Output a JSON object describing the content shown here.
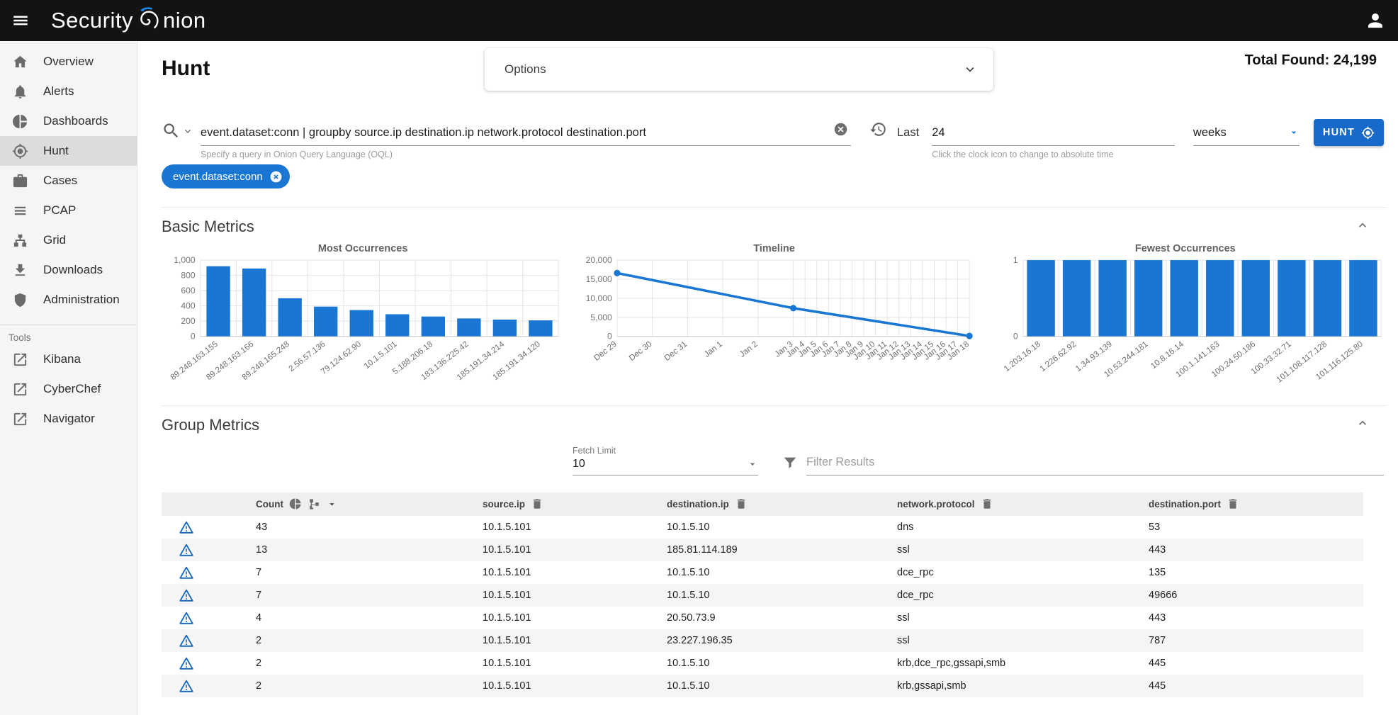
{
  "topbar": {
    "logo_prefix": "Security",
    "logo_suffix": "nion",
    "menu_icon": "hamburger-icon",
    "user_icon": "person-icon"
  },
  "sidebar": {
    "items": [
      {
        "label": "Overview",
        "icon": "home-icon",
        "active": false
      },
      {
        "label": "Alerts",
        "icon": "bell-icon",
        "active": false
      },
      {
        "label": "Dashboards",
        "icon": "pie-chart-icon",
        "active": false
      },
      {
        "label": "Hunt",
        "icon": "crosshair-icon",
        "active": true
      },
      {
        "label": "Cases",
        "icon": "briefcase-icon",
        "active": false
      },
      {
        "label": "PCAP",
        "icon": "list-icon",
        "active": false
      },
      {
        "label": "Grid",
        "icon": "sitemap-icon",
        "active": false
      },
      {
        "label": "Downloads",
        "icon": "download-icon",
        "active": false
      },
      {
        "label": "Administration",
        "icon": "shield-icon",
        "active": false
      }
    ],
    "tools_label": "Tools",
    "tools": [
      {
        "label": "Kibana",
        "icon": "external-link-icon"
      },
      {
        "label": "CyberChef",
        "icon": "external-link-icon"
      },
      {
        "label": "Navigator",
        "icon": "external-link-icon"
      }
    ]
  },
  "header": {
    "title": "Hunt",
    "options_label": "Options",
    "total_found": "Total Found: 24,199"
  },
  "query": {
    "value": "event.dataset:conn | groupby source.ip destination.ip network.protocol destination.port",
    "hint": "Specify a query in Onion Query Language (OQL)",
    "time_label": "Last",
    "time_value": "24",
    "time_unit": "weeks",
    "time_hint": "Click the clock icon to change to absolute time",
    "hunt_label": "HUNT",
    "search_icon": "magnifier",
    "clear_icon": "circle-x",
    "history_icon": "clock-history"
  },
  "chip": {
    "label": "event.dataset:conn",
    "close_icon": "circle-x"
  },
  "sections": {
    "basic_title": "Basic Metrics",
    "group_title": "Group Metrics"
  },
  "group_controls": {
    "fetch_limit_label": "Fetch Limit",
    "fetch_limit_value": "10",
    "filter_placeholder": "Filter Results",
    "filter_icon": "funnel"
  },
  "table": {
    "columns": [
      "Count",
      "source.ip",
      "destination.ip",
      "network.protocol",
      "destination.port"
    ],
    "row_icon": "warning-triangle",
    "rows": [
      [
        "43",
        "10.1.5.101",
        "10.1.5.10",
        "dns",
        "53"
      ],
      [
        "13",
        "10.1.5.101",
        "185.81.114.189",
        "ssl",
        "443"
      ],
      [
        "7",
        "10.1.5.101",
        "10.1.5.10",
        "dce_rpc",
        "135"
      ],
      [
        "7",
        "10.1.5.101",
        "10.1.5.10",
        "dce_rpc",
        "49666"
      ],
      [
        "4",
        "10.1.5.101",
        "20.50.73.9",
        "ssl",
        "443"
      ],
      [
        "2",
        "10.1.5.101",
        "23.227.196.35",
        "ssl",
        "787"
      ],
      [
        "2",
        "10.1.5.101",
        "10.1.5.10",
        "krb,dce_rpc,gssapi,smb",
        "445"
      ],
      [
        "2",
        "10.1.5.101",
        "10.1.5.10",
        "krb,gssapi,smb",
        "445"
      ]
    ]
  },
  "chart_data": [
    {
      "type": "bar",
      "title": "Most Occurrences",
      "categories": [
        "89.248.163.155",
        "89.248.163.166",
        "89.248.165.248",
        "2.56.57.136",
        "79.124.62.90",
        "10.1.5.101",
        "5.188.206.18",
        "183.136.225.42",
        "185.191.34.214",
        "185.191.34.120"
      ],
      "values": [
        920,
        890,
        500,
        390,
        345,
        290,
        260,
        235,
        220,
        210
      ],
      "ylim": [
        0,
        1000
      ],
      "yticks": [
        0,
        200,
        400,
        600,
        800,
        1000
      ],
      "grid": true,
      "bar_color": "#1976d2"
    },
    {
      "type": "line",
      "title": "Timeline",
      "x": [
        "Dec 29",
        "Dec 30",
        "Dec 31",
        "Jan 1",
        "Jan 2",
        "Jan 3",
        "Jan 4",
        "Jan 5",
        "Jan 6",
        "Jan 7",
        "Jan 8",
        "Jan 9",
        "Jan 10",
        "Jan 11",
        "Jan 12",
        "Jan 13",
        "Jan 14",
        "Jan 15",
        "Jan 16",
        "Jan 17",
        "Jan 18"
      ],
      "points": [
        {
          "x": "Dec 29",
          "y": 16600
        },
        {
          "x": "Jan 3",
          "y": 7400
        },
        {
          "x": "Jan 18",
          "y": 100
        }
      ],
      "ylim": [
        0,
        20000
      ],
      "yticks": [
        0,
        5000,
        10000,
        15000,
        20000
      ],
      "grid": true,
      "line_color": "#1976d2"
    },
    {
      "type": "bar",
      "title": "Fewest Occurrences",
      "categories": [
        "1.203.16.18",
        "1.226.62.92",
        "1.34.93.139",
        "10.53.244.181",
        "10.8.16.14",
        "100.1.141.163",
        "100.24.50.186",
        "100.33.32.71",
        "101.108.117.128",
        "101.116.125.80"
      ],
      "values": [
        1,
        1,
        1,
        1,
        1,
        1,
        1,
        1,
        1,
        1
      ],
      "ylim": [
        0,
        1
      ],
      "yticks": [
        0,
        1
      ],
      "grid": true,
      "bar_color": "#1976d2"
    }
  ],
  "colors": {
    "accent": "#1976d2",
    "button": "#1769ca",
    "topbar": "#131313",
    "sidebar_bg": "#f5f5f5",
    "active_item_bg": "#dcdcdc",
    "warning_icon": "#1565c0",
    "table_header_bg": "#efefef",
    "row_alt_bg": "#f5f5f5"
  }
}
